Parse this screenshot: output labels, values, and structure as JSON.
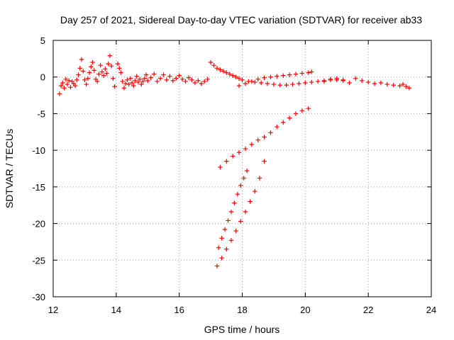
{
  "chart_data": {
    "type": "scatter",
    "title": "Day 257 of 2021, Sidereal Day-to-day VTEC variation (SDTVAR) for receiver ab33",
    "xlabel": "GPS time / hours",
    "ylabel": "SDTVAR / TECUs",
    "xlim": [
      12,
      24
    ],
    "ylim": [
      -30,
      5
    ],
    "xticks": [
      "12",
      "14",
      "16",
      "18",
      "20",
      "22",
      "24"
    ],
    "yticks": [
      "5",
      "0",
      "-5",
      "-10",
      "-15",
      "-20",
      "-25",
      "-30"
    ],
    "grid": true,
    "marker": "plus",
    "color": "#ff0000",
    "series": [
      {
        "points": [
          [
            12.2,
            -2.3
          ],
          [
            12.25,
            -1.2
          ],
          [
            12.3,
            -0.8
          ],
          [
            12.35,
            -1.5
          ],
          [
            12.4,
            -0.3
          ],
          [
            12.45,
            -1.0
          ],
          [
            12.5,
            -0.5
          ],
          [
            12.55,
            -1.4
          ],
          [
            12.6,
            -0.6
          ],
          [
            12.65,
            -0.9
          ],
          [
            12.7,
            -1.2
          ],
          [
            12.75,
            -0.4
          ],
          [
            12.8,
            0.3
          ],
          [
            12.85,
            1.2
          ],
          [
            12.9,
            2.4
          ],
          [
            12.95,
            0.8
          ],
          [
            13.0,
            -0.4
          ],
          [
            13.05,
            -1.0
          ],
          [
            13.1,
            -0.2
          ],
          [
            13.15,
            0.6
          ],
          [
            13.2,
            1.4
          ],
          [
            13.25,
            2.0
          ],
          [
            13.3,
            0.9
          ],
          [
            13.35,
            -0.3
          ],
          [
            13.4,
            -0.6
          ],
          [
            13.45,
            0.4
          ],
          [
            13.5,
            1.6
          ],
          [
            13.55,
            0.7
          ],
          [
            13.6,
            0.2
          ],
          [
            13.65,
            1.1
          ],
          [
            13.7,
            0.5
          ],
          [
            13.75,
            1.8
          ],
          [
            13.8,
            2.9
          ],
          [
            13.85,
            1.5
          ],
          [
            13.9,
            -0.2
          ],
          [
            13.95,
            -1.3
          ],
          [
            14.05,
            1.8
          ],
          [
            14.1,
            1.2
          ],
          [
            14.15,
            0.6
          ],
          [
            14.2,
            -0.6
          ],
          [
            14.25,
            -1.5
          ],
          [
            14.3,
            -0.9
          ],
          [
            14.35,
            -0.4
          ],
          [
            14.4,
            -1.0
          ],
          [
            14.45,
            -0.2
          ],
          [
            14.5,
            -0.8
          ],
          [
            14.55,
            -1.2
          ],
          [
            14.6,
            -0.5
          ],
          [
            14.65,
            0.1
          ],
          [
            14.7,
            -0.7
          ],
          [
            14.75,
            -0.3
          ],
          [
            14.8,
            -1.0
          ],
          [
            14.85,
            -0.6
          ],
          [
            14.9,
            -0.2
          ],
          [
            14.95,
            0.3
          ],
          [
            15.0,
            -0.5
          ],
          [
            15.1,
            -0.1
          ],
          [
            15.2,
            0.4
          ],
          [
            15.3,
            -0.6
          ],
          [
            15.4,
            -0.2
          ],
          [
            15.5,
            0.3
          ],
          [
            15.6,
            -0.4
          ],
          [
            15.7,
            0.1
          ],
          [
            15.8,
            -0.5
          ],
          [
            15.9,
            -0.2
          ],
          [
            16.0,
            0.2
          ],
          [
            16.1,
            -0.3
          ],
          [
            16.2,
            -0.6
          ],
          [
            16.3,
            -0.1
          ],
          [
            16.4,
            -0.4
          ],
          [
            16.5,
            -0.8
          ],
          [
            16.6,
            -0.5
          ],
          [
            16.7,
            -0.9
          ],
          [
            16.8,
            -0.6
          ],
          [
            16.9,
            -0.3
          ]
        ]
      },
      {
        "points": [
          [
            17.0,
            2.0
          ],
          [
            17.1,
            1.6
          ],
          [
            17.2,
            1.2
          ],
          [
            17.3,
            1.0
          ],
          [
            17.4,
            0.8
          ],
          [
            17.5,
            0.6
          ],
          [
            17.6,
            0.4
          ],
          [
            17.7,
            0.2
          ],
          [
            17.8,
            0.0
          ],
          [
            17.9,
            -0.2
          ],
          [
            18.0,
            -0.4
          ],
          [
            18.2,
            -0.6
          ],
          [
            18.4,
            -0.7
          ],
          [
            18.6,
            -0.8
          ],
          [
            18.8,
            -0.9
          ],
          [
            19.0,
            -1.0
          ],
          [
            19.2,
            -1.1
          ],
          [
            19.4,
            -1.1
          ],
          [
            19.6,
            -1.0
          ],
          [
            19.8,
            -0.9
          ],
          [
            20.0,
            -0.8
          ],
          [
            20.2,
            -0.7
          ],
          [
            20.4,
            -0.6
          ],
          [
            20.6,
            -0.5
          ],
          [
            20.8,
            -0.4
          ],
          [
            21.0,
            -0.4
          ],
          [
            21.2,
            -0.4
          ]
        ]
      },
      {
        "points": [
          [
            17.9,
            -1.2
          ],
          [
            18.1,
            -0.9
          ],
          [
            18.3,
            -0.6
          ],
          [
            18.5,
            -0.3
          ],
          [
            18.7,
            -0.1
          ],
          [
            18.9,
            0.0
          ],
          [
            19.1,
            0.1
          ],
          [
            19.3,
            0.2
          ],
          [
            19.5,
            0.3
          ],
          [
            19.7,
            0.4
          ],
          [
            19.9,
            0.5
          ],
          [
            20.1,
            0.6
          ],
          [
            20.2,
            0.7
          ]
        ]
      },
      {
        "points": [
          [
            20.6,
            -0.6
          ],
          [
            20.8,
            -0.3
          ],
          [
            21.0,
            -0.2
          ],
          [
            21.2,
            -0.5
          ],
          [
            21.4,
            -0.8
          ],
          [
            21.6,
            -0.2
          ],
          [
            21.8,
            -0.5
          ],
          [
            22.0,
            -0.7
          ],
          [
            22.2,
            -0.9
          ],
          [
            22.4,
            -0.8
          ],
          [
            22.6,
            -1.0
          ],
          [
            22.8,
            -1.1
          ],
          [
            23.0,
            -1.2
          ],
          [
            23.1,
            -1.0
          ],
          [
            23.2,
            -1.3
          ],
          [
            23.3,
            -1.5
          ]
        ]
      },
      {
        "points": [
          [
            17.3,
            -12.3
          ],
          [
            17.5,
            -11.5
          ],
          [
            17.7,
            -10.8
          ],
          [
            17.9,
            -10.3
          ],
          [
            18.1,
            -9.8
          ],
          [
            18.3,
            -9.2
          ],
          [
            18.5,
            -8.6
          ],
          [
            18.7,
            -8.2
          ],
          [
            18.9,
            -7.6
          ],
          [
            19.1,
            -6.8
          ],
          [
            19.3,
            -6.2
          ],
          [
            19.5,
            -5.6
          ],
          [
            19.7,
            -5.0
          ],
          [
            19.9,
            -4.6
          ],
          [
            20.1,
            -4.3
          ]
        ]
      },
      {
        "points": [
          [
            17.25,
            -23.3
          ],
          [
            17.35,
            -22.0
          ],
          [
            17.45,
            -20.8
          ],
          [
            17.55,
            -19.6
          ],
          [
            17.65,
            -18.4
          ],
          [
            17.75,
            -17.2
          ],
          [
            17.85,
            -16.0
          ],
          [
            17.95,
            -14.8
          ],
          [
            18.05,
            -13.8
          ],
          [
            18.15,
            -12.8
          ]
        ]
      },
      {
        "points": [
          [
            17.2,
            -25.8
          ],
          [
            17.35,
            -24.7
          ],
          [
            17.5,
            -23.5
          ],
          [
            17.65,
            -22.3
          ],
          [
            17.8,
            -21.0
          ],
          [
            17.95,
            -19.7
          ],
          [
            18.1,
            -18.4
          ],
          [
            18.25,
            -17.0
          ],
          [
            18.4,
            -15.6
          ],
          [
            18.55,
            -13.8
          ],
          [
            18.7,
            -11.5
          ]
        ]
      }
    ]
  }
}
